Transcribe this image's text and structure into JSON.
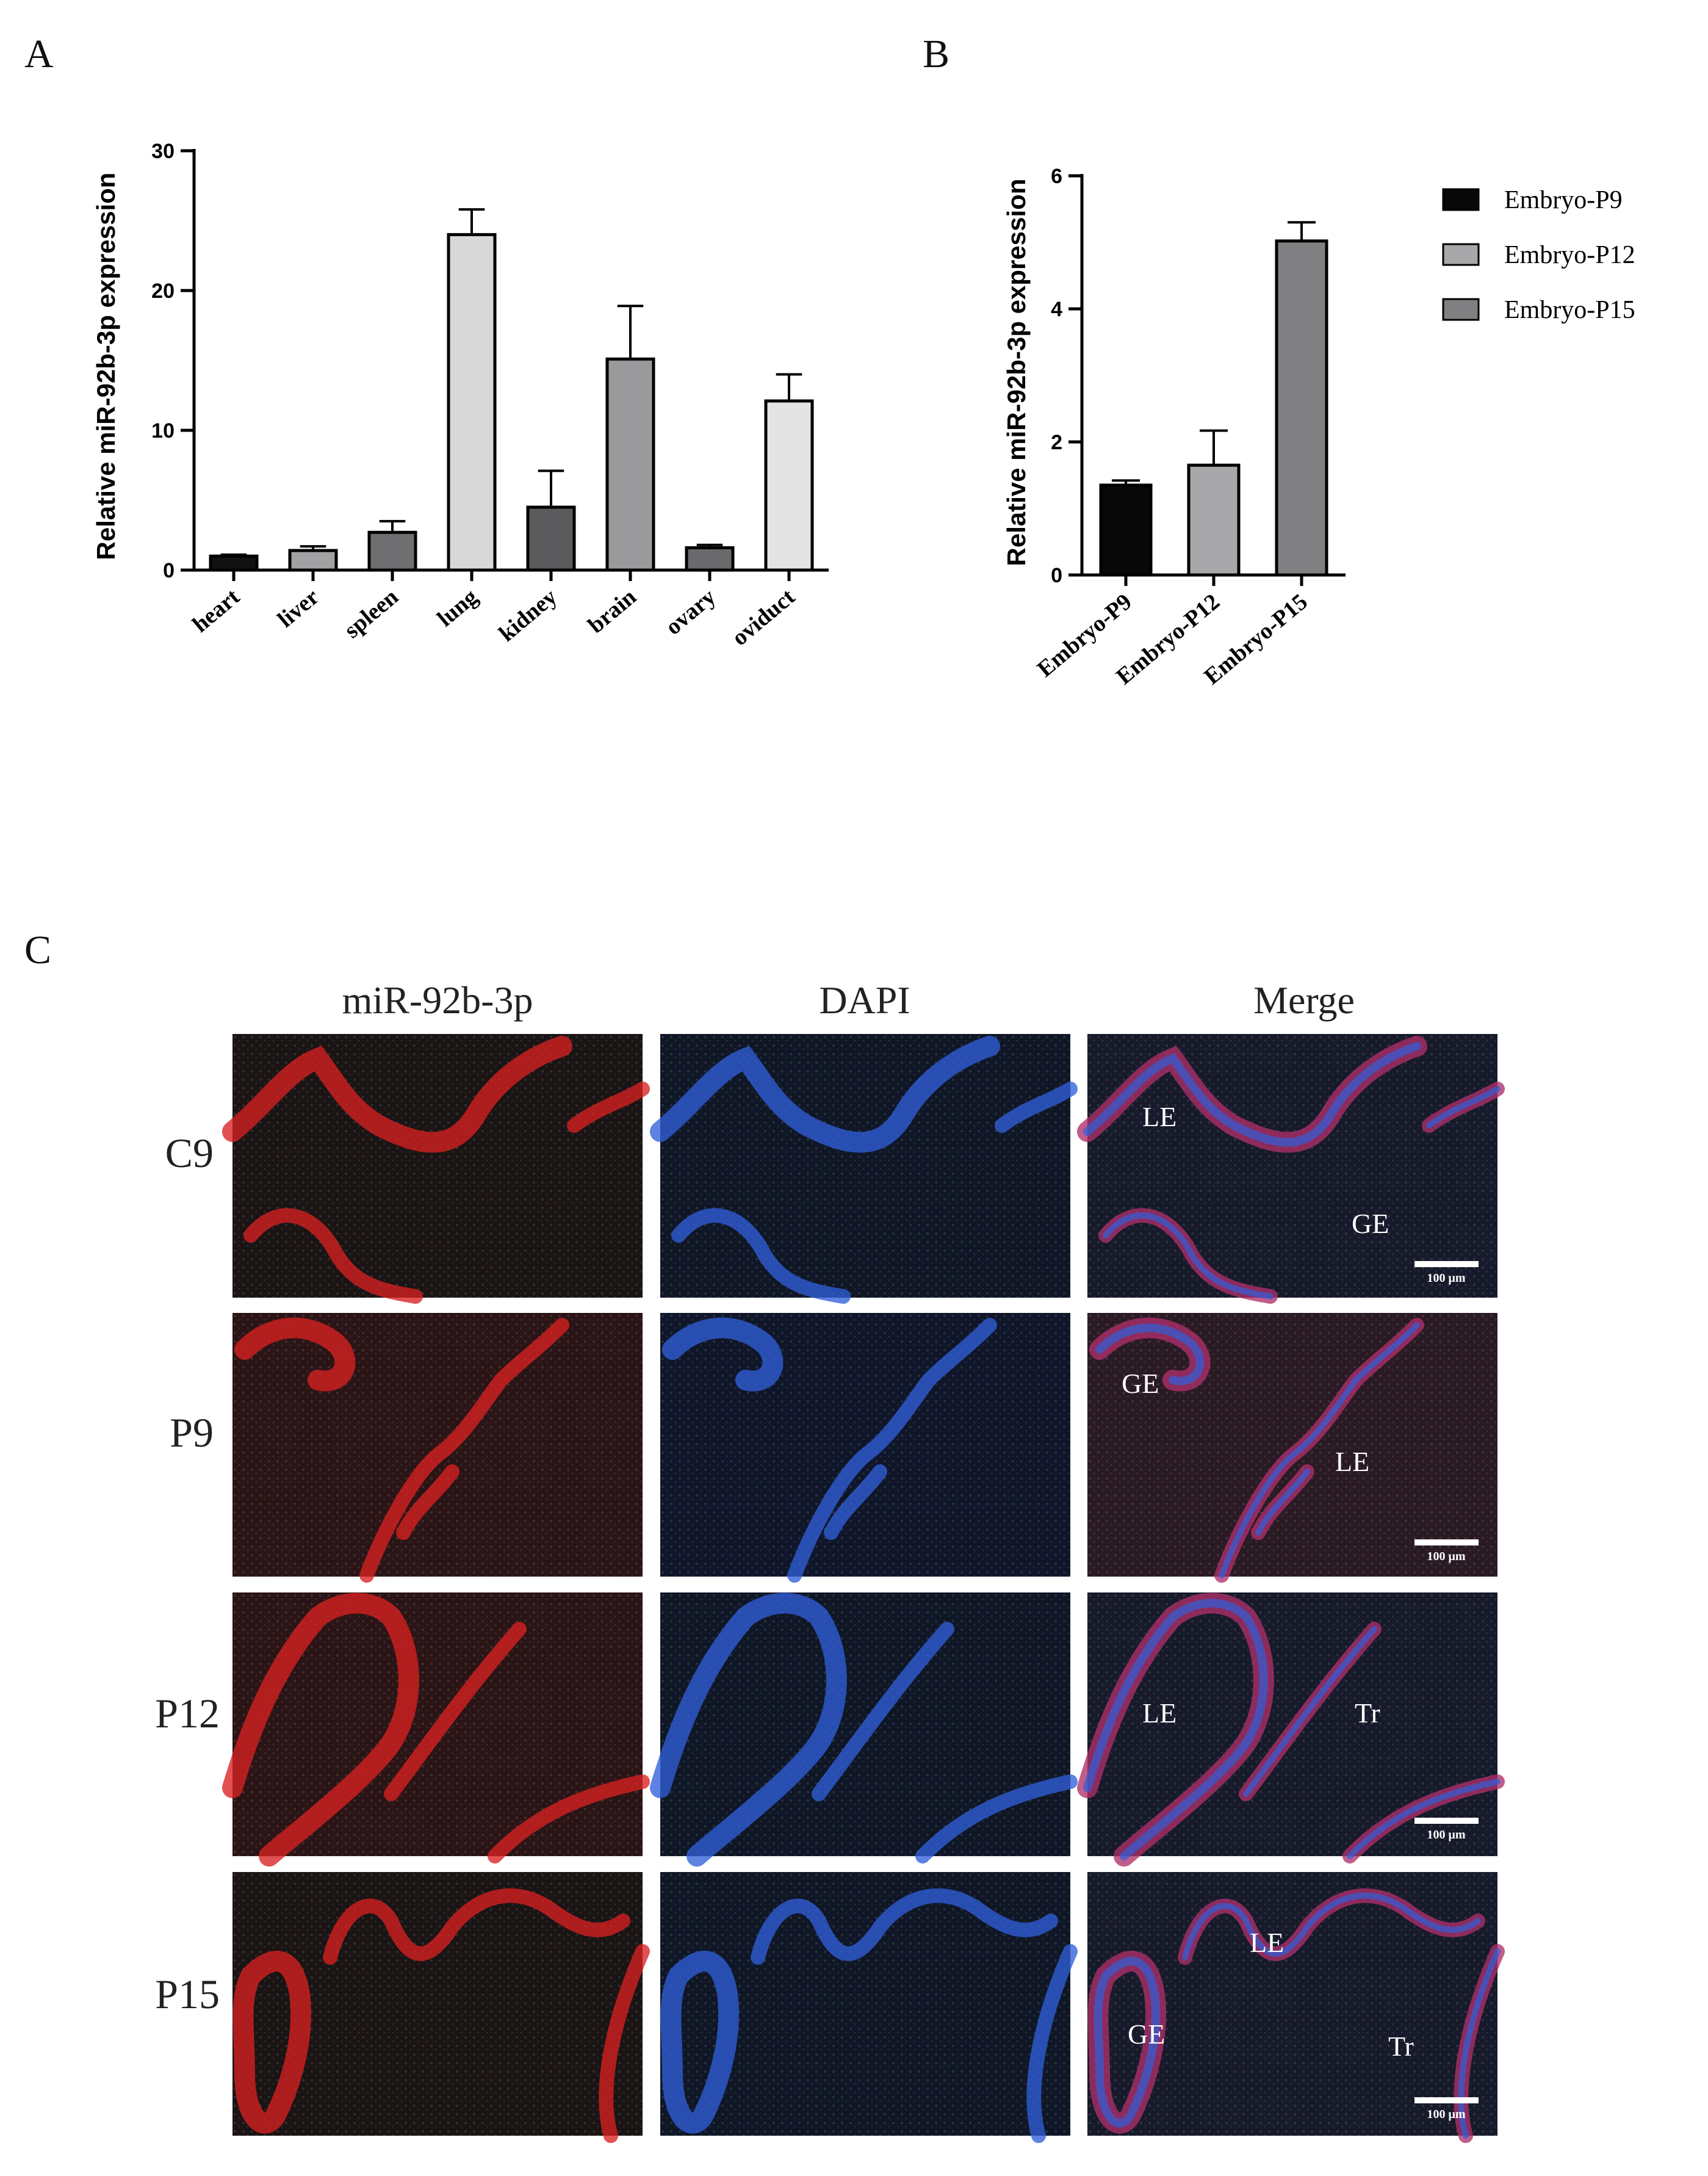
{
  "panels": {
    "a": "A",
    "b": "B",
    "c": "C"
  },
  "chart_data": [
    {
      "type": "bar",
      "panel": "A",
      "ylabel": "Relative miR-92b-3p expression",
      "ylim": [
        0,
        30
      ],
      "yticks": [
        0,
        10,
        20,
        30
      ],
      "categories": [
        "heart",
        "liver",
        "spleen",
        "lung",
        "kidney",
        "brain",
        "ovary",
        "oviduct"
      ],
      "values": [
        1.0,
        1.4,
        2.7,
        24.0,
        4.5,
        15.1,
        1.6,
        12.1
      ],
      "errors": [
        0.1,
        0.3,
        0.8,
        1.8,
        2.6,
        3.8,
        0.2,
        1.9
      ],
      "colors": [
        "#111111",
        "#a2a2a4",
        "#6f6f71",
        "#d8d8d8",
        "#5a5a5c",
        "#9a9a9c",
        "#6a6a6c",
        "#e4e4e4"
      ]
    },
    {
      "type": "bar",
      "panel": "B",
      "ylabel": "Relative miR-92b-3p expression",
      "ylim": [
        0,
        6
      ],
      "yticks": [
        0,
        2,
        4,
        6
      ],
      "categories": [
        "Embryo-P9",
        "Embryo-P12",
        "Embryo-P15"
      ],
      "values": [
        1.35,
        1.65,
        5.02
      ],
      "errors": [
        0.07,
        0.52,
        0.28
      ],
      "colors": [
        "#080808",
        "#a8a8aa",
        "#808082"
      ],
      "legend": {
        "position": "right",
        "items": [
          "Embryo-P9",
          "Embryo-P12",
          "Embryo-P15"
        ]
      }
    }
  ],
  "micrographs": {
    "columns": [
      "miR-92b-3p",
      "DAPI",
      "Merge"
    ],
    "rows": [
      {
        "label": "C9",
        "merge_labels": [
          "LE",
          "GE"
        ],
        "scale": "100 μm"
      },
      {
        "label": "P9",
        "merge_labels": [
          "GE",
          "LE"
        ],
        "scale": "100 μm"
      },
      {
        "label": "P12",
        "merge_labels": [
          "LE",
          "Tr"
        ],
        "scale": "100 μm"
      },
      {
        "label": "P15",
        "merge_labels": [
          "LE",
          "GE",
          "Tr"
        ],
        "scale": "100 μm"
      }
    ],
    "colors": {
      "background": "#14181a",
      "red": "#d82020",
      "blue": "#2f5fd8",
      "merge_bg": "#1e1a2a"
    }
  }
}
